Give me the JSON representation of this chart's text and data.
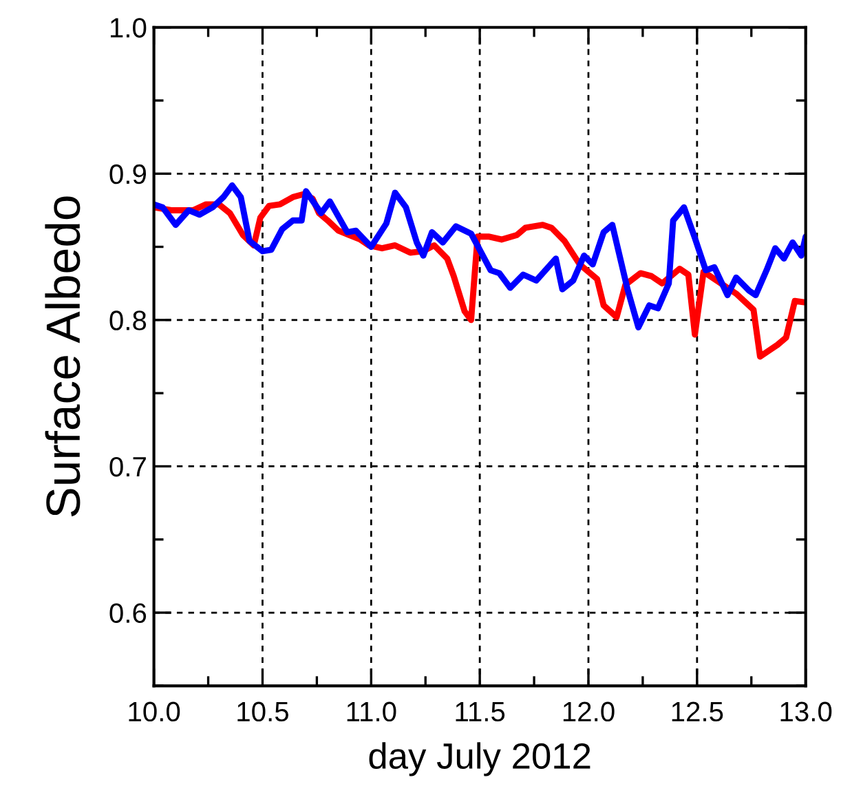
{
  "chart_data": {
    "type": "line",
    "xlabel": "day July 2012",
    "ylabel": "Surface Albedo",
    "xlim": [
      10,
      13
    ],
    "xticks": [
      {
        "value": 10,
        "label": "10.0"
      },
      10.5,
      {
        "value": 11,
        "label": "11.0"
      },
      11.5,
      {
        "value": 12,
        "label": "12.0"
      },
      12.5,
      {
        "value": 13,
        "label": "13.0"
      }
    ],
    "ylim": [
      0.55,
      1.0
    ],
    "yticks": [
      0.6,
      0.7,
      0.8,
      0.9,
      {
        "value": 1.0,
        "label": "1.0"
      }
    ],
    "grid": true,
    "line_style": "solid",
    "marker": "none",
    "series": [
      {
        "color": "#ff0000",
        "x": [
          10.0,
          10.08,
          10.18,
          10.24,
          10.3,
          10.35,
          10.41,
          10.46,
          10.49,
          10.53,
          10.58,
          10.64,
          10.69,
          10.73,
          10.76,
          10.8,
          10.85,
          10.9,
          10.95,
          10.99,
          11.05,
          11.11,
          11.18,
          11.24,
          11.29,
          11.35,
          11.38,
          11.43,
          11.46,
          11.49,
          11.54,
          11.6,
          11.67,
          11.71,
          11.79,
          11.83,
          11.89,
          11.96,
          12.04,
          12.07,
          12.13,
          12.17,
          12.24,
          12.29,
          12.34,
          12.42,
          12.46,
          12.49,
          12.53,
          12.62,
          12.68,
          12.76,
          12.79,
          12.87,
          12.91,
          12.95,
          13.0
        ],
        "values": [
          0.877,
          0.875,
          0.875,
          0.879,
          0.879,
          0.873,
          0.858,
          0.851,
          0.87,
          0.878,
          0.879,
          0.884,
          0.886,
          0.883,
          0.873,
          0.868,
          0.861,
          0.858,
          0.855,
          0.851,
          0.849,
          0.851,
          0.846,
          0.847,
          0.851,
          0.842,
          0.83,
          0.806,
          0.8,
          0.857,
          0.857,
          0.855,
          0.858,
          0.863,
          0.865,
          0.863,
          0.854,
          0.838,
          0.828,
          0.81,
          0.802,
          0.824,
          0.832,
          0.83,
          0.825,
          0.835,
          0.831,
          0.79,
          0.833,
          0.824,
          0.818,
          0.807,
          0.775,
          0.783,
          0.788,
          0.813,
          0.812
        ]
      },
      {
        "color": "#0000ff",
        "x": [
          10.0,
          10.04,
          10.1,
          10.16,
          10.21,
          10.27,
          10.32,
          10.36,
          10.4,
          10.44,
          10.5,
          10.54,
          10.59,
          10.64,
          10.68,
          10.7,
          10.77,
          10.81,
          10.89,
          10.93,
          11.0,
          11.07,
          11.11,
          11.16,
          11.21,
          11.24,
          11.28,
          11.33,
          11.39,
          11.46,
          11.55,
          11.59,
          11.64,
          11.7,
          11.76,
          11.85,
          11.88,
          11.93,
          11.98,
          12.02,
          12.07,
          12.11,
          12.18,
          12.23,
          12.28,
          12.32,
          12.37,
          12.39,
          12.44,
          12.49,
          12.54,
          12.58,
          12.64,
          12.68,
          12.74,
          12.77,
          12.82,
          12.86,
          12.9,
          12.94,
          12.98,
          13.0
        ],
        "values": [
          0.879,
          0.877,
          0.865,
          0.875,
          0.872,
          0.877,
          0.884,
          0.892,
          0.884,
          0.854,
          0.847,
          0.848,
          0.862,
          0.868,
          0.868,
          0.888,
          0.873,
          0.881,
          0.86,
          0.861,
          0.85,
          0.866,
          0.887,
          0.877,
          0.853,
          0.844,
          0.86,
          0.853,
          0.864,
          0.859,
          0.834,
          0.832,
          0.822,
          0.831,
          0.827,
          0.842,
          0.821,
          0.827,
          0.844,
          0.838,
          0.86,
          0.865,
          0.821,
          0.795,
          0.81,
          0.808,
          0.825,
          0.868,
          0.877,
          0.856,
          0.834,
          0.836,
          0.817,
          0.829,
          0.82,
          0.817,
          0.834,
          0.849,
          0.842,
          0.853,
          0.844,
          0.857
        ]
      }
    ]
  }
}
